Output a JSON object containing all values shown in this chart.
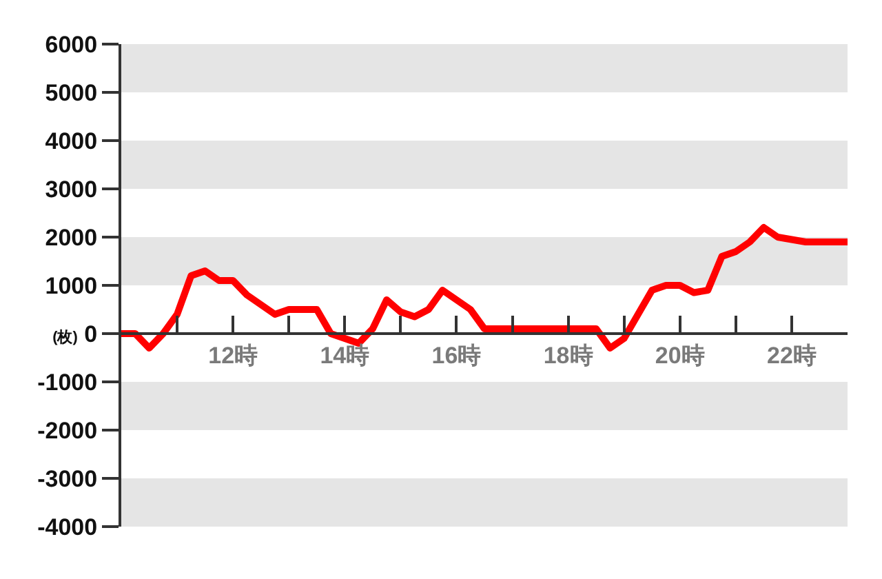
{
  "chart_data": {
    "type": "line",
    "x": [
      10,
      10.25,
      10.5,
      10.75,
      11,
      11.25,
      11.5,
      11.75,
      12,
      12.25,
      12.5,
      12.75,
      13,
      13.25,
      13.5,
      13.75,
      14,
      14.25,
      14.5,
      14.75,
      15,
      15.25,
      15.5,
      15.75,
      16,
      16.25,
      16.5,
      16.75,
      17,
      17.25,
      17.5,
      17.75,
      18,
      18.25,
      18.5,
      18.75,
      19,
      19.25,
      19.5,
      19.75,
      20,
      20.25,
      20.5,
      20.75,
      21,
      21.25,
      21.5,
      21.75,
      22,
      22.25,
      22.5,
      22.75,
      23
    ],
    "series": [
      {
        "color": "#ff0000",
        "values": [
          0,
          0,
          -300,
          0,
          400,
          1200,
          1300,
          1100,
          1100,
          800,
          600,
          400,
          500,
          500,
          500,
          0,
          -100,
          -200,
          100,
          700,
          450,
          350,
          500,
          900,
          700,
          500,
          100,
          100,
          100,
          100,
          100,
          100,
          100,
          100,
          100,
          -300,
          -100,
          400,
          900,
          1000,
          1000,
          850,
          900,
          1600,
          1700,
          1900,
          2200,
          2000,
          1950,
          1900,
          1900,
          1900,
          1900
        ]
      }
    ],
    "xlim": [
      10,
      23
    ],
    "xticks": [
      {
        "value": 11,
        "label": null
      },
      {
        "value": 12,
        "label": "12時"
      },
      {
        "value": 13,
        "label": null
      },
      {
        "value": 14,
        "label": "14時"
      },
      {
        "value": 15,
        "label": null
      },
      {
        "value": 16,
        "label": "16時"
      },
      {
        "value": 17,
        "label": null
      },
      {
        "value": 18,
        "label": "18時"
      },
      {
        "value": 19,
        "label": null
      },
      {
        "value": 20,
        "label": "20時"
      },
      {
        "value": 21,
        "label": null
      },
      {
        "value": 22,
        "label": "22時"
      }
    ],
    "ylim": [
      -4000,
      6000
    ],
    "yticks": [
      -4000,
      -3000,
      -2000,
      -1000,
      {
        "value": 0,
        "label": "(枚) 0"
      },
      1000,
      2000,
      3000,
      4000,
      5000,
      6000
    ],
    "bands": [
      {
        "axis": "y",
        "from": 5000,
        "to": 6000,
        "color": "#e5e5e5"
      },
      {
        "axis": "y",
        "from": 3000,
        "to": 4000,
        "color": "#e5e5e5"
      },
      {
        "axis": "y",
        "from": 1000,
        "to": 2000,
        "color": "#e5e5e5"
      },
      {
        "axis": "y",
        "from": -2000,
        "to": -1000,
        "color": "#e5e5e5"
      },
      {
        "axis": "y",
        "from": -4000,
        "to": -3000,
        "color": "#e5e5e5"
      }
    ],
    "grid": false,
    "legend": false,
    "marker": "none",
    "line_style": "solid"
  }
}
